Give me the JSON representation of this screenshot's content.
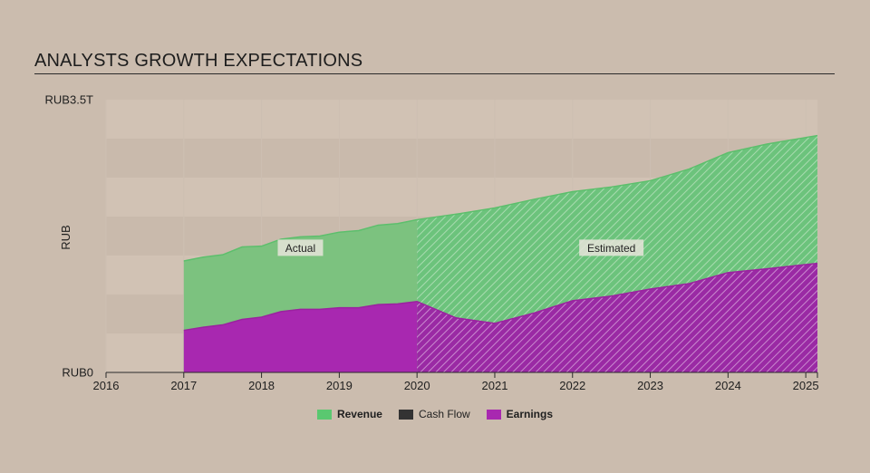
{
  "title": "ANALYSTS GROWTH EXPECTATIONS",
  "chart_data": {
    "type": "area",
    "title": "ANALYSTS GROWTH EXPECTATIONS",
    "xlabel": "",
    "ylabel": "RUB",
    "xlim": [
      2016,
      2025.15
    ],
    "ylim": [
      0,
      3.5
    ],
    "y_unit": "RUB trillions",
    "y_tick_labels": [
      {
        "value": 0,
        "label": "RUB0"
      },
      {
        "value": 3.5,
        "label": "RUB3.5T"
      }
    ],
    "x_ticks": [
      2016,
      2017,
      2018,
      2019,
      2020,
      2021,
      2022,
      2023,
      2024,
      2025
    ],
    "actual_end": 2020,
    "annotations": [
      {
        "text": "Actual",
        "x": 2018.5,
        "y": 1.6
      },
      {
        "text": "Estimated",
        "x": 2022.5,
        "y": 1.6
      }
    ],
    "series": [
      {
        "name": "Revenue",
        "color": "#5ac870",
        "x": [
          2017,
          2017.25,
          2017.5,
          2017.75,
          2018,
          2018.25,
          2018.5,
          2018.75,
          2019,
          2019.25,
          2019.5,
          2019.75,
          2020,
          2020.5,
          2021,
          2021.5,
          2022,
          2022.5,
          2023,
          2023.5,
          2024,
          2024.5,
          2025.15
        ],
        "values": [
          1.43,
          1.48,
          1.51,
          1.61,
          1.62,
          1.71,
          1.74,
          1.75,
          1.8,
          1.82,
          1.89,
          1.91,
          1.96,
          2.03,
          2.11,
          2.22,
          2.32,
          2.38,
          2.46,
          2.61,
          2.82,
          2.93,
          3.04
        ]
      },
      {
        "name": "Cash Flow",
        "color": "#333333",
        "x": [],
        "values": []
      },
      {
        "name": "Earnings",
        "color": "#a828b0",
        "x": [
          2017,
          2017.25,
          2017.5,
          2017.75,
          2018,
          2018.25,
          2018.5,
          2018.75,
          2019,
          2019.25,
          2019.5,
          2019.75,
          2020,
          2020.5,
          2021,
          2021.5,
          2022,
          2022.5,
          2023,
          2023.5,
          2024,
          2024.5,
          2025.15
        ],
        "values": [
          0.54,
          0.58,
          0.61,
          0.68,
          0.71,
          0.78,
          0.81,
          0.81,
          0.83,
          0.83,
          0.87,
          0.88,
          0.91,
          0.7,
          0.63,
          0.76,
          0.92,
          0.98,
          1.07,
          1.14,
          1.28,
          1.33,
          1.4
        ]
      }
    ],
    "legend": [
      {
        "label": "Revenue",
        "color": "#5ac870"
      },
      {
        "label": "Cash Flow",
        "color": "#333333"
      },
      {
        "label": "Earnings",
        "color": "#a828b0"
      }
    ]
  }
}
